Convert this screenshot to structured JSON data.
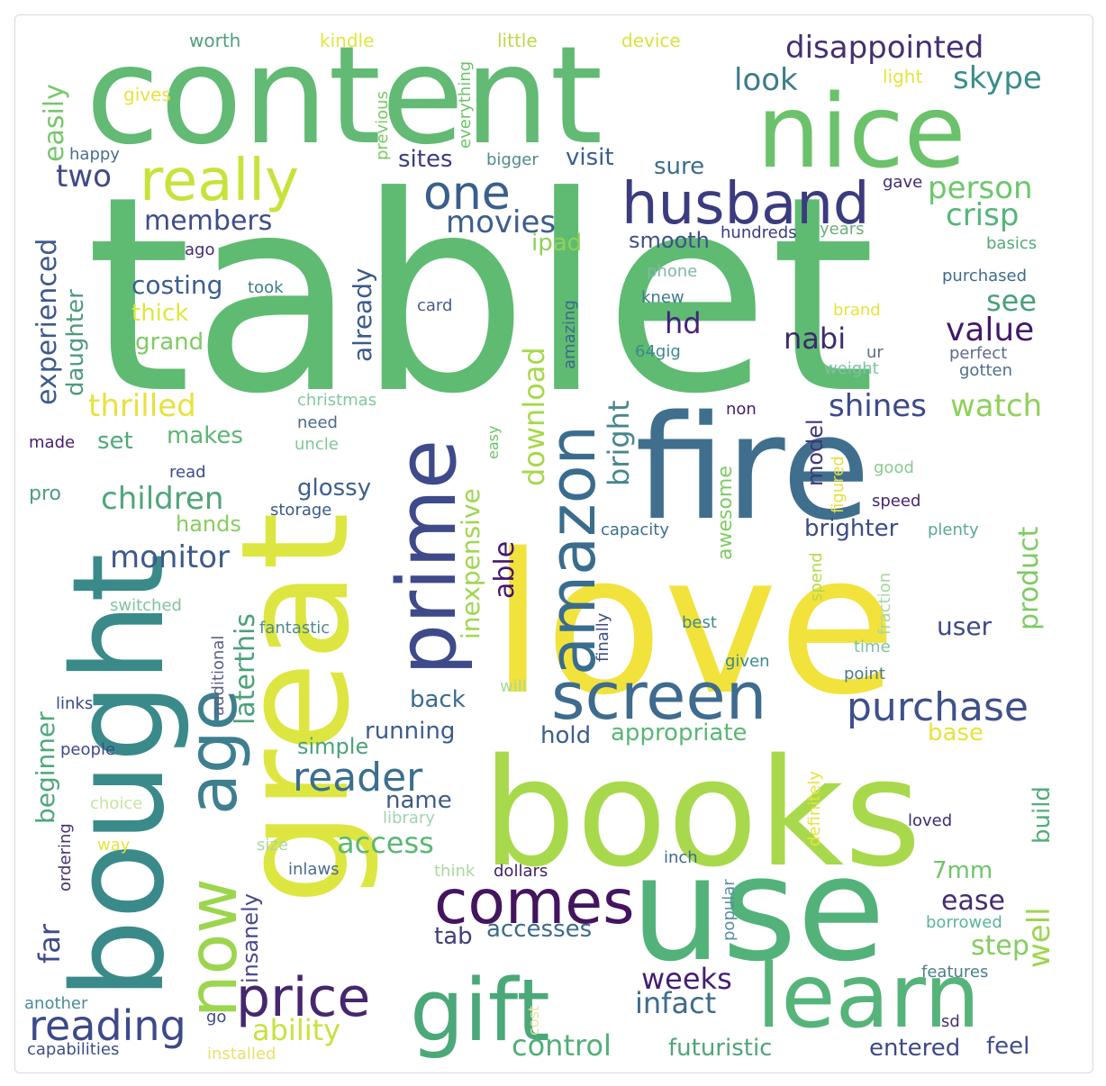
{
  "words": [
    {
      "text": "tablet",
      "color": "#5fbb72"
    },
    {
      "text": "love",
      "color": "#f2e23c"
    },
    {
      "text": "content",
      "color": "#62ba74"
    },
    {
      "text": "books",
      "color": "#a8d94c"
    },
    {
      "text": "fire",
      "color": "#3f6f8c"
    },
    {
      "text": "great",
      "color": "#dde640"
    },
    {
      "text": "bought",
      "color": "#3a8a8a"
    },
    {
      "text": "use",
      "color": "#52b27a"
    },
    {
      "text": "nice",
      "color": "#6cc26a"
    },
    {
      "text": "gift",
      "color": "#4aa879"
    },
    {
      "text": "learn",
      "color": "#56b47a"
    },
    {
      "text": "prime",
      "color": "#3e4a8a"
    },
    {
      "text": "screen",
      "color": "#3e6b8e"
    },
    {
      "text": "now",
      "color": "#9cd54e"
    },
    {
      "text": "age",
      "color": "#3d7f8e"
    },
    {
      "text": "comes",
      "color": "#44145e"
    },
    {
      "text": "amazon",
      "color": "#3a6c8d"
    },
    {
      "text": "husband",
      "color": "#3b3b7f"
    },
    {
      "text": "really",
      "color": "#c9e23b"
    },
    {
      "text": "one",
      "color": "#3a5f8c"
    },
    {
      "text": "price",
      "color": "#46276e"
    },
    {
      "text": "reading",
      "color": "#3e4989"
    },
    {
      "text": "purchase",
      "color": "#3f508a"
    },
    {
      "text": "reader",
      "color": "#3b6f8e"
    },
    {
      "text": "disappointed",
      "color": "#452f72"
    },
    {
      "text": "look",
      "color": "#3d7b8e"
    },
    {
      "text": "skype",
      "color": "#3a8d8b"
    },
    {
      "text": "person",
      "color": "#6cc76b"
    },
    {
      "text": "crisp",
      "color": "#54b679"
    },
    {
      "text": "movies",
      "color": "#3d5e8c"
    },
    {
      "text": "members",
      "color": "#3f4d89"
    },
    {
      "text": "two",
      "color": "#3f4a88"
    },
    {
      "text": "experienced",
      "color": "#3d5a8b"
    },
    {
      "text": "easily",
      "color": "#76c86b"
    },
    {
      "text": "sites",
      "color": "#3f3b7e"
    },
    {
      "text": "visit",
      "color": "#3a5e8c"
    },
    {
      "text": "sure",
      "color": "#3c6c8e"
    },
    {
      "text": "smooth",
      "color": "#3f4f88"
    },
    {
      "text": "ipad",
      "color": "#8fd159"
    },
    {
      "text": "costing",
      "color": "#3c5e8c"
    },
    {
      "text": "thick",
      "color": "#dfe63c"
    },
    {
      "text": "grand",
      "color": "#7ecb63"
    },
    {
      "text": "hd",
      "color": "#45217b"
    },
    {
      "text": "see",
      "color": "#4aa07b"
    },
    {
      "text": "nabi",
      "color": "#3c2b6e"
    },
    {
      "text": "value",
      "color": "#43196b"
    },
    {
      "text": "already",
      "color": "#3b5a8b"
    },
    {
      "text": "daughter",
      "color": "#4f9b7c"
    },
    {
      "text": "thrilled",
      "color": "#e8e23c"
    },
    {
      "text": "shines",
      "color": "#3c4a89"
    },
    {
      "text": "watch",
      "color": "#8fd15a"
    },
    {
      "text": "set",
      "color": "#4fa97a"
    },
    {
      "text": "makes",
      "color": "#5db573"
    },
    {
      "text": "children",
      "color": "#4fa57a"
    },
    {
      "text": "glossy",
      "color": "#3e5f8c"
    },
    {
      "text": "download",
      "color": "#a7d84b"
    },
    {
      "text": "bright",
      "color": "#46878d"
    },
    {
      "text": "inexpensive",
      "color": "#a0d650"
    },
    {
      "text": "able",
      "color": "#46156d"
    },
    {
      "text": "model",
      "color": "#3f367a"
    },
    {
      "text": "brighter",
      "color": "#3c4b89"
    },
    {
      "text": "product",
      "color": "#7ecb63"
    },
    {
      "text": "monitor",
      "color": "#3e5a8b"
    },
    {
      "text": "laterthis",
      "color": "#4aa17a"
    },
    {
      "text": "pro",
      "color": "#4b9f7b"
    },
    {
      "text": "hands",
      "color": "#88cd5d"
    },
    {
      "text": "user",
      "color": "#3f4a89"
    },
    {
      "text": "running",
      "color": "#3c5c8c"
    },
    {
      "text": "back",
      "color": "#3a6b8e"
    },
    {
      "text": "hold",
      "color": "#3b5f8c"
    },
    {
      "text": "appropriate",
      "color": "#5ab774"
    },
    {
      "text": "beginner",
      "color": "#4ea87a"
    },
    {
      "text": "name",
      "color": "#3e5b8b"
    },
    {
      "text": "access",
      "color": "#5bb774"
    },
    {
      "text": "far",
      "color": "#3f4b89"
    },
    {
      "text": "simple",
      "color": "#4aa37a"
    },
    {
      "text": "base",
      "color": "#eae13d"
    },
    {
      "text": "build",
      "color": "#52ad78"
    },
    {
      "text": "well",
      "color": "#9ed54f"
    },
    {
      "text": "7mm",
      "color": "#6ec46a"
    },
    {
      "text": "ease",
      "color": "#442d70"
    },
    {
      "text": "step",
      "color": "#83cd5f"
    },
    {
      "text": "insanely",
      "color": "#4a4a8a"
    },
    {
      "text": "tab",
      "color": "#3f3d7c"
    },
    {
      "text": "accesses",
      "color": "#3d6b8d"
    },
    {
      "text": "weeks",
      "color": "#451f72"
    },
    {
      "text": "infact",
      "color": "#3d6b8d"
    },
    {
      "text": "ability",
      "color": "#c6e23f"
    },
    {
      "text": "control",
      "color": "#52ae78"
    },
    {
      "text": "futuristic",
      "color": "#4fa579"
    },
    {
      "text": "entered",
      "color": "#3d4a88"
    },
    {
      "text": "feel",
      "color": "#3f4e89"
    },
    {
      "text": "worth",
      "color": "#4f9f7b"
    },
    {
      "text": "kindle",
      "color": "#e2e53c"
    },
    {
      "text": "little",
      "color": "#b7dc46"
    },
    {
      "text": "device",
      "color": "#d9e33d"
    },
    {
      "text": "light",
      "color": "#e8e33c"
    },
    {
      "text": "gives",
      "color": "#e8e23c"
    },
    {
      "text": "previous",
      "color": "#7cc865"
    },
    {
      "text": "everything",
      "color": "#6cc26a"
    },
    {
      "text": "happy",
      "color": "#4a6f8e"
    },
    {
      "text": "bigger",
      "color": "#4f8a8c"
    },
    {
      "text": "gave",
      "color": "#43296f"
    },
    {
      "text": "hundreds",
      "color": "#3a3c7d"
    },
    {
      "text": "years",
      "color": "#6fae7a"
    },
    {
      "text": "basics",
      "color": "#56a87a"
    },
    {
      "text": "purchased",
      "color": "#3f6b8b"
    },
    {
      "text": "ago",
      "color": "#442a73"
    },
    {
      "text": "took",
      "color": "#3c7b8a"
    },
    {
      "text": "phone",
      "color": "#7fb8a6"
    },
    {
      "text": "knew",
      "color": "#3e7b8c"
    },
    {
      "text": "card",
      "color": "#4a5b8a"
    },
    {
      "text": "amazing",
      "color": "#3a6a8c"
    },
    {
      "text": "brand",
      "color": "#e8e23c"
    },
    {
      "text": "ur",
      "color": "#5e6f8a"
    },
    {
      "text": "64gig",
      "color": "#3b8a8b"
    },
    {
      "text": "perfect",
      "color": "#5f6a8a"
    },
    {
      "text": "weight",
      "color": "#7ec1a5"
    },
    {
      "text": "gotten",
      "color": "#4f6f8c"
    },
    {
      "text": "christmas",
      "color": "#80c99f"
    },
    {
      "text": "need",
      "color": "#4a6a8a"
    },
    {
      "text": "uncle",
      "color": "#80c79a"
    },
    {
      "text": "easy",
      "color": "#6cc26a"
    },
    {
      "text": "made",
      "color": "#45206f"
    },
    {
      "text": "non",
      "color": "#44206e"
    },
    {
      "text": "read",
      "color": "#3b4b89"
    },
    {
      "text": "storage",
      "color": "#3a5a8a"
    },
    {
      "text": "figured",
      "color": "#e6e03c"
    },
    {
      "text": "good",
      "color": "#8ac98f"
    },
    {
      "text": "speed",
      "color": "#43276f"
    },
    {
      "text": "capacity",
      "color": "#3c6f8d"
    },
    {
      "text": "awesome",
      "color": "#7ecb63"
    },
    {
      "text": "plenty",
      "color": "#56aa95"
    },
    {
      "text": "switched",
      "color": "#80c49d"
    },
    {
      "text": "additional",
      "color": "#5a5f8a"
    },
    {
      "text": "fantastic",
      "color": "#4f8a8c"
    },
    {
      "text": "spend",
      "color": "#b3db4a"
    },
    {
      "text": "fraction",
      "color": "#a7d7a0"
    },
    {
      "text": "best",
      "color": "#3f8a8b"
    },
    {
      "text": "finally",
      "color": "#3f4f87"
    },
    {
      "text": "time",
      "color": "#7cc2a3"
    },
    {
      "text": "links",
      "color": "#3b4a88"
    },
    {
      "text": "given",
      "color": "#3a8a8a"
    },
    {
      "text": "point",
      "color": "#4b7a8c"
    },
    {
      "text": "will",
      "color": "#a7d7a0"
    },
    {
      "text": "people",
      "color": "#3f4a89"
    },
    {
      "text": "choice",
      "color": "#c7e3a0"
    },
    {
      "text": "ordering",
      "color": "#46336f"
    },
    {
      "text": "library",
      "color": "#a0d4b0"
    },
    {
      "text": "definitely",
      "color": "#e8e23c"
    },
    {
      "text": "loved",
      "color": "#3d2d72"
    },
    {
      "text": "way",
      "color": "#e8e23c"
    },
    {
      "text": "size",
      "color": "#a8d7a3"
    },
    {
      "text": "inlaws",
      "color": "#4a6b8c"
    },
    {
      "text": "think",
      "color": "#a9d8a0"
    },
    {
      "text": "dollars",
      "color": "#43206c"
    },
    {
      "text": "inch",
      "color": "#3f6a8c"
    },
    {
      "text": "popular",
      "color": "#5a8fa5"
    },
    {
      "text": "borrowed",
      "color": "#5ab498"
    },
    {
      "text": "features",
      "color": "#4a7f8c"
    },
    {
      "text": "another",
      "color": "#4a8a9a"
    },
    {
      "text": "go",
      "color": "#3f4a89"
    },
    {
      "text": "cost",
      "color": "#e7e2a0"
    },
    {
      "text": "sd",
      "color": "#45306f"
    },
    {
      "text": "capabilities",
      "color": "#3d4f88"
    },
    {
      "text": "installed",
      "color": "#e6e26a"
    }
  ]
}
